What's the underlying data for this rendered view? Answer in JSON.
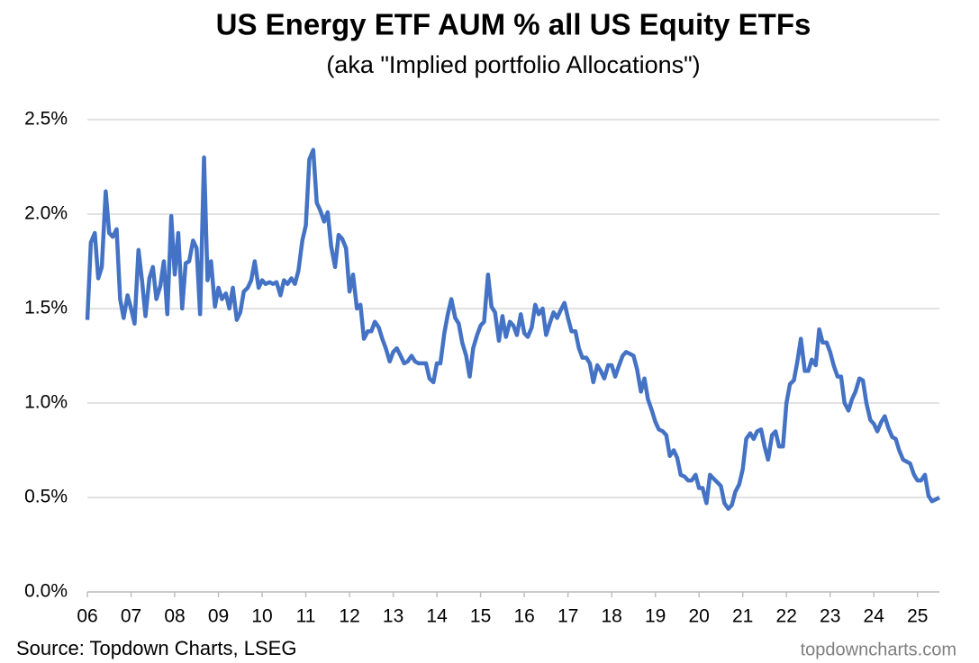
{
  "chart_data": {
    "type": "line",
    "title": "US Energy ETF AUM % all US Equity ETFs",
    "subtitle": "(aka \"Implied portfolio Allocations\")",
    "source": "Source: Topdown Charts, LSEG",
    "watermark": "topdowncharts.com",
    "xlim": [
      2006,
      2025.5
    ],
    "xticks": [
      {
        "value": 2006,
        "label": "06"
      },
      {
        "value": 2007,
        "label": "07"
      },
      {
        "value": 2008,
        "label": "08"
      },
      {
        "value": 2009,
        "label": "09"
      },
      {
        "value": 2010,
        "label": "10"
      },
      {
        "value": 2011,
        "label": "11"
      },
      {
        "value": 2012,
        "label": "12"
      },
      {
        "value": 2013,
        "label": "13"
      },
      {
        "value": 2014,
        "label": "14"
      },
      {
        "value": 2015,
        "label": "15"
      },
      {
        "value": 2016,
        "label": "16"
      },
      {
        "value": 2017,
        "label": "17"
      },
      {
        "value": 2018,
        "label": "18"
      },
      {
        "value": 2019,
        "label": "19"
      },
      {
        "value": 2020,
        "label": "20"
      },
      {
        "value": 2021,
        "label": "21"
      },
      {
        "value": 2022,
        "label": "22"
      },
      {
        "value": 2023,
        "label": "23"
      },
      {
        "value": 2024,
        "label": "24"
      },
      {
        "value": 2025,
        "label": "25"
      }
    ],
    "ylim": [
      0,
      2.5
    ],
    "yticks": [
      {
        "value": 0,
        "label": "0.0%"
      },
      {
        "value": 0.5,
        "label": "0.5%"
      },
      {
        "value": 1,
        "label": "1.0%"
      },
      {
        "value": 1.5,
        "label": "1.5%"
      },
      {
        "value": 2,
        "label": "2.0%"
      },
      {
        "value": 2.5,
        "label": "2.5%"
      }
    ],
    "grid": true,
    "color": "#4472c4",
    "x": [
      2006,
      2006.08,
      2006.17,
      2006.25,
      2006.33,
      2006.42,
      2006.5,
      2006.58,
      2006.67,
      2006.75,
      2006.83,
      2006.92,
      2007,
      2007.08,
      2007.17,
      2007.25,
      2007.33,
      2007.42,
      2007.5,
      2007.58,
      2007.67,
      2007.75,
      2007.83,
      2007.92,
      2008,
      2008.08,
      2008.17,
      2008.25,
      2008.33,
      2008.42,
      2008.5,
      2008.58,
      2008.67,
      2008.75,
      2008.83,
      2008.92,
      2009,
      2009.08,
      2009.17,
      2009.25,
      2009.33,
      2009.42,
      2009.5,
      2009.58,
      2009.67,
      2009.75,
      2009.83,
      2009.92,
      2010,
      2010.08,
      2010.17,
      2010.25,
      2010.33,
      2010.42,
      2010.5,
      2010.58,
      2010.67,
      2010.75,
      2010.83,
      2010.92,
      2011,
      2011.08,
      2011.17,
      2011.25,
      2011.33,
      2011.42,
      2011.5,
      2011.58,
      2011.67,
      2011.75,
      2011.83,
      2011.92,
      2012,
      2012.08,
      2012.17,
      2012.25,
      2012.33,
      2012.42,
      2012.5,
      2012.58,
      2012.67,
      2012.75,
      2012.83,
      2012.92,
      2013,
      2013.08,
      2013.17,
      2013.25,
      2013.33,
      2013.42,
      2013.5,
      2013.58,
      2013.67,
      2013.75,
      2013.83,
      2013.92,
      2014,
      2014.08,
      2014.17,
      2014.25,
      2014.33,
      2014.42,
      2014.5,
      2014.58,
      2014.67,
      2014.75,
      2014.83,
      2014.92,
      2015,
      2015.08,
      2015.17,
      2015.25,
      2015.33,
      2015.42,
      2015.5,
      2015.58,
      2015.67,
      2015.75,
      2015.83,
      2015.92,
      2016,
      2016.08,
      2016.17,
      2016.25,
      2016.33,
      2016.42,
      2016.5,
      2016.58,
      2016.67,
      2016.75,
      2016.83,
      2016.92,
      2017,
      2017.08,
      2017.17,
      2017.25,
      2017.33,
      2017.42,
      2017.5,
      2017.58,
      2017.67,
      2017.75,
      2017.83,
      2017.92,
      2018,
      2018.08,
      2018.17,
      2018.25,
      2018.33,
      2018.42,
      2018.5,
      2018.58,
      2018.67,
      2018.75,
      2018.83,
      2018.92,
      2019,
      2019.08,
      2019.17,
      2019.25,
      2019.33,
      2019.42,
      2019.5,
      2019.58,
      2019.67,
      2019.75,
      2019.83,
      2019.92,
      2020,
      2020.08,
      2020.17,
      2020.25,
      2020.33,
      2020.42,
      2020.5,
      2020.58,
      2020.67,
      2020.75,
      2020.83,
      2020.92,
      2021,
      2021.08,
      2021.17,
      2021.25,
      2021.33,
      2021.42,
      2021.5,
      2021.58,
      2021.67,
      2021.75,
      2021.83,
      2021.92,
      2022,
      2022.08,
      2022.17,
      2022.25,
      2022.33,
      2022.42,
      2022.5,
      2022.58,
      2022.67,
      2022.75,
      2022.83,
      2022.92,
      2023,
      2023.08,
      2023.17,
      2023.25,
      2023.33,
      2023.42,
      2023.5,
      2023.58,
      2023.67,
      2023.75,
      2023.83,
      2023.92,
      2024,
      2024.08,
      2024.17,
      2024.25,
      2024.33,
      2024.42,
      2024.5,
      2024.58,
      2024.67,
      2024.75,
      2024.83,
      2024.92,
      2025,
      2025.08,
      2025.17,
      2025.25,
      2025.33,
      2025.42,
      2025.5
    ],
    "values": [
      1.44,
      1.85,
      1.9,
      1.66,
      1.72,
      2.12,
      1.9,
      1.88,
      1.92,
      1.55,
      1.45,
      1.57,
      1.5,
      1.42,
      1.81,
      1.65,
      1.46,
      1.66,
      1.72,
      1.55,
      1.62,
      1.75,
      1.47,
      1.99,
      1.68,
      1.9,
      1.5,
      1.74,
      1.75,
      1.86,
      1.82,
      1.47,
      2.3,
      1.65,
      1.75,
      1.51,
      1.61,
      1.55,
      1.58,
      1.5,
      1.61,
      1.44,
      1.48,
      1.59,
      1.61,
      1.65,
      1.75,
      1.61,
      1.65,
      1.63,
      1.64,
      1.63,
      1.64,
      1.57,
      1.65,
      1.63,
      1.66,
      1.63,
      1.7,
      1.86,
      1.94,
      2.29,
      2.34,
      2.06,
      2.02,
      1.96,
      2.01,
      1.83,
      1.72,
      1.89,
      1.87,
      1.82,
      1.59,
      1.68,
      1.5,
      1.52,
      1.34,
      1.38,
      1.38,
      1.43,
      1.4,
      1.34,
      1.29,
      1.22,
      1.27,
      1.29,
      1.25,
      1.21,
      1.22,
      1.25,
      1.22,
      1.21,
      1.21,
      1.21,
      1.13,
      1.11,
      1.21,
      1.21,
      1.37,
      1.47,
      1.55,
      1.45,
      1.42,
      1.32,
      1.25,
      1.14,
      1.29,
      1.36,
      1.41,
      1.43,
      1.68,
      1.51,
      1.48,
      1.33,
      1.46,
      1.35,
      1.43,
      1.41,
      1.36,
      1.47,
      1.37,
      1.35,
      1.4,
      1.52,
      1.47,
      1.5,
      1.36,
      1.42,
      1.48,
      1.45,
      1.49,
      1.53,
      1.45,
      1.38,
      1.38,
      1.29,
      1.24,
      1.24,
      1.21,
      1.11,
      1.2,
      1.17,
      1.13,
      1.2,
      1.2,
      1.14,
      1.2,
      1.25,
      1.27,
      1.26,
      1.25,
      1.18,
      1.06,
      1.13,
      1.02,
      0.96,
      0.9,
      0.86,
      0.85,
      0.83,
      0.72,
      0.75,
      0.71,
      0.62,
      0.61,
      0.59,
      0.59,
      0.62,
      0.55,
      0.55,
      0.47,
      0.62,
      0.6,
      0.58,
      0.56,
      0.47,
      0.44,
      0.46,
      0.53,
      0.57,
      0.65,
      0.81,
      0.84,
      0.81,
      0.85,
      0.86,
      0.77,
      0.7,
      0.83,
      0.85,
      0.77,
      0.77,
      1.0,
      1.1,
      1.12,
      1.22,
      1.34,
      1.17,
      1.17,
      1.23,
      1.2,
      1.39,
      1.32,
      1.32,
      1.27,
      1.2,
      1.14,
      1.14,
      1.0,
      0.96,
      1.02,
      1.06,
      1.13,
      1.12,
      1.0,
      0.91,
      0.89,
      0.85,
      0.9,
      0.93,
      0.87,
      0.82,
      0.81,
      0.75,
      0.7,
      0.69,
      0.68,
      0.62,
      0.59,
      0.59,
      0.62,
      0.51,
      0.48,
      0.49,
      0.5
    ]
  }
}
